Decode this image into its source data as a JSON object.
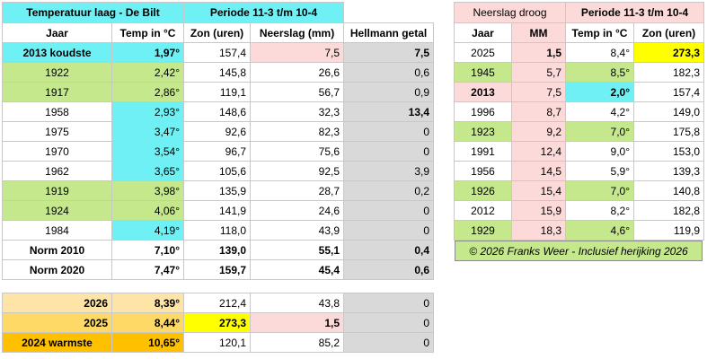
{
  "left_table": {
    "title": "Temperatuur laag - De Bilt",
    "period": "Periode 11-3 t/m 10-4",
    "headers": [
      "Jaar",
      "Temp in °C",
      "Zon (uren)",
      "Neerslag (mm)",
      "Hellmann getal"
    ],
    "rows": [
      [
        "2013 koudste",
        "1,97°",
        "157,4",
        "7,5",
        "7,5"
      ],
      [
        "1922",
        "2,42°",
        "145,8",
        "26,6",
        "0,6"
      ],
      [
        "1917",
        "2,86°",
        "119,1",
        "56,7",
        "0,9"
      ],
      [
        "1958",
        "2,93°",
        "148,6",
        "32,3",
        "13,4"
      ],
      [
        "1975",
        "3,47°",
        "92,6",
        "82,3",
        "0"
      ],
      [
        "1970",
        "3,54°",
        "96,7",
        "75,6",
        "0"
      ],
      [
        "1962",
        "3,65°",
        "105,6",
        "92,5",
        "3,9"
      ],
      [
        "1919",
        "3,98°",
        "135,9",
        "28,7",
        "0,2"
      ],
      [
        "1924",
        "4,06°",
        "141,9",
        "24,6",
        "0"
      ],
      [
        "1984",
        "4,19°",
        "118,0",
        "43,9",
        "0"
      ]
    ]
  },
  "norm_table": {
    "rows": [
      [
        "Norm 2010",
        "7,10°",
        "139,0",
        "55,1",
        "0,4"
      ],
      [
        "Norm 2020",
        "7,47°",
        "159,7",
        "45,4",
        "0,6"
      ]
    ]
  },
  "recent_table": {
    "rows": [
      [
        "2026",
        "8,39°",
        "212,4",
        "43,8",
        "0"
      ],
      [
        "2025",
        "8,44°",
        "273,3",
        "1,5",
        "0"
      ],
      [
        "2024 warmste",
        "10,65°",
        "120,1",
        "85,2",
        "0"
      ]
    ]
  },
  "right_table": {
    "title": "Neerslag droog",
    "period": "Periode 11-3 t/m 10-4",
    "headers": [
      "Jaar",
      "MM",
      "Temp in °C",
      "Zon (uren)"
    ],
    "rows": [
      [
        "2025",
        "1,5",
        "8,4°",
        "273,3"
      ],
      [
        "1945",
        "5,7",
        "8,5°",
        "182,3"
      ],
      [
        "2013",
        "7,5",
        "2,0°",
        "157,4"
      ],
      [
        "1996",
        "8,7",
        "4,2°",
        "149,0"
      ],
      [
        "1923",
        "9,2",
        "7,0°",
        "175,8"
      ],
      [
        "1991",
        "12,4",
        "9,0°",
        "153,0"
      ],
      [
        "1956",
        "14,5",
        "5,9°",
        "139,3"
      ],
      [
        "1926",
        "15,4",
        "7,0°",
        "140,8"
      ],
      [
        "2012",
        "15,9",
        "8,2°",
        "182,8"
      ],
      [
        "1929",
        "18,3",
        "4,6°",
        "119,9"
      ]
    ]
  },
  "footer_note": "© 2026 Franks Weer  -  Inclusief herijking 2026"
}
